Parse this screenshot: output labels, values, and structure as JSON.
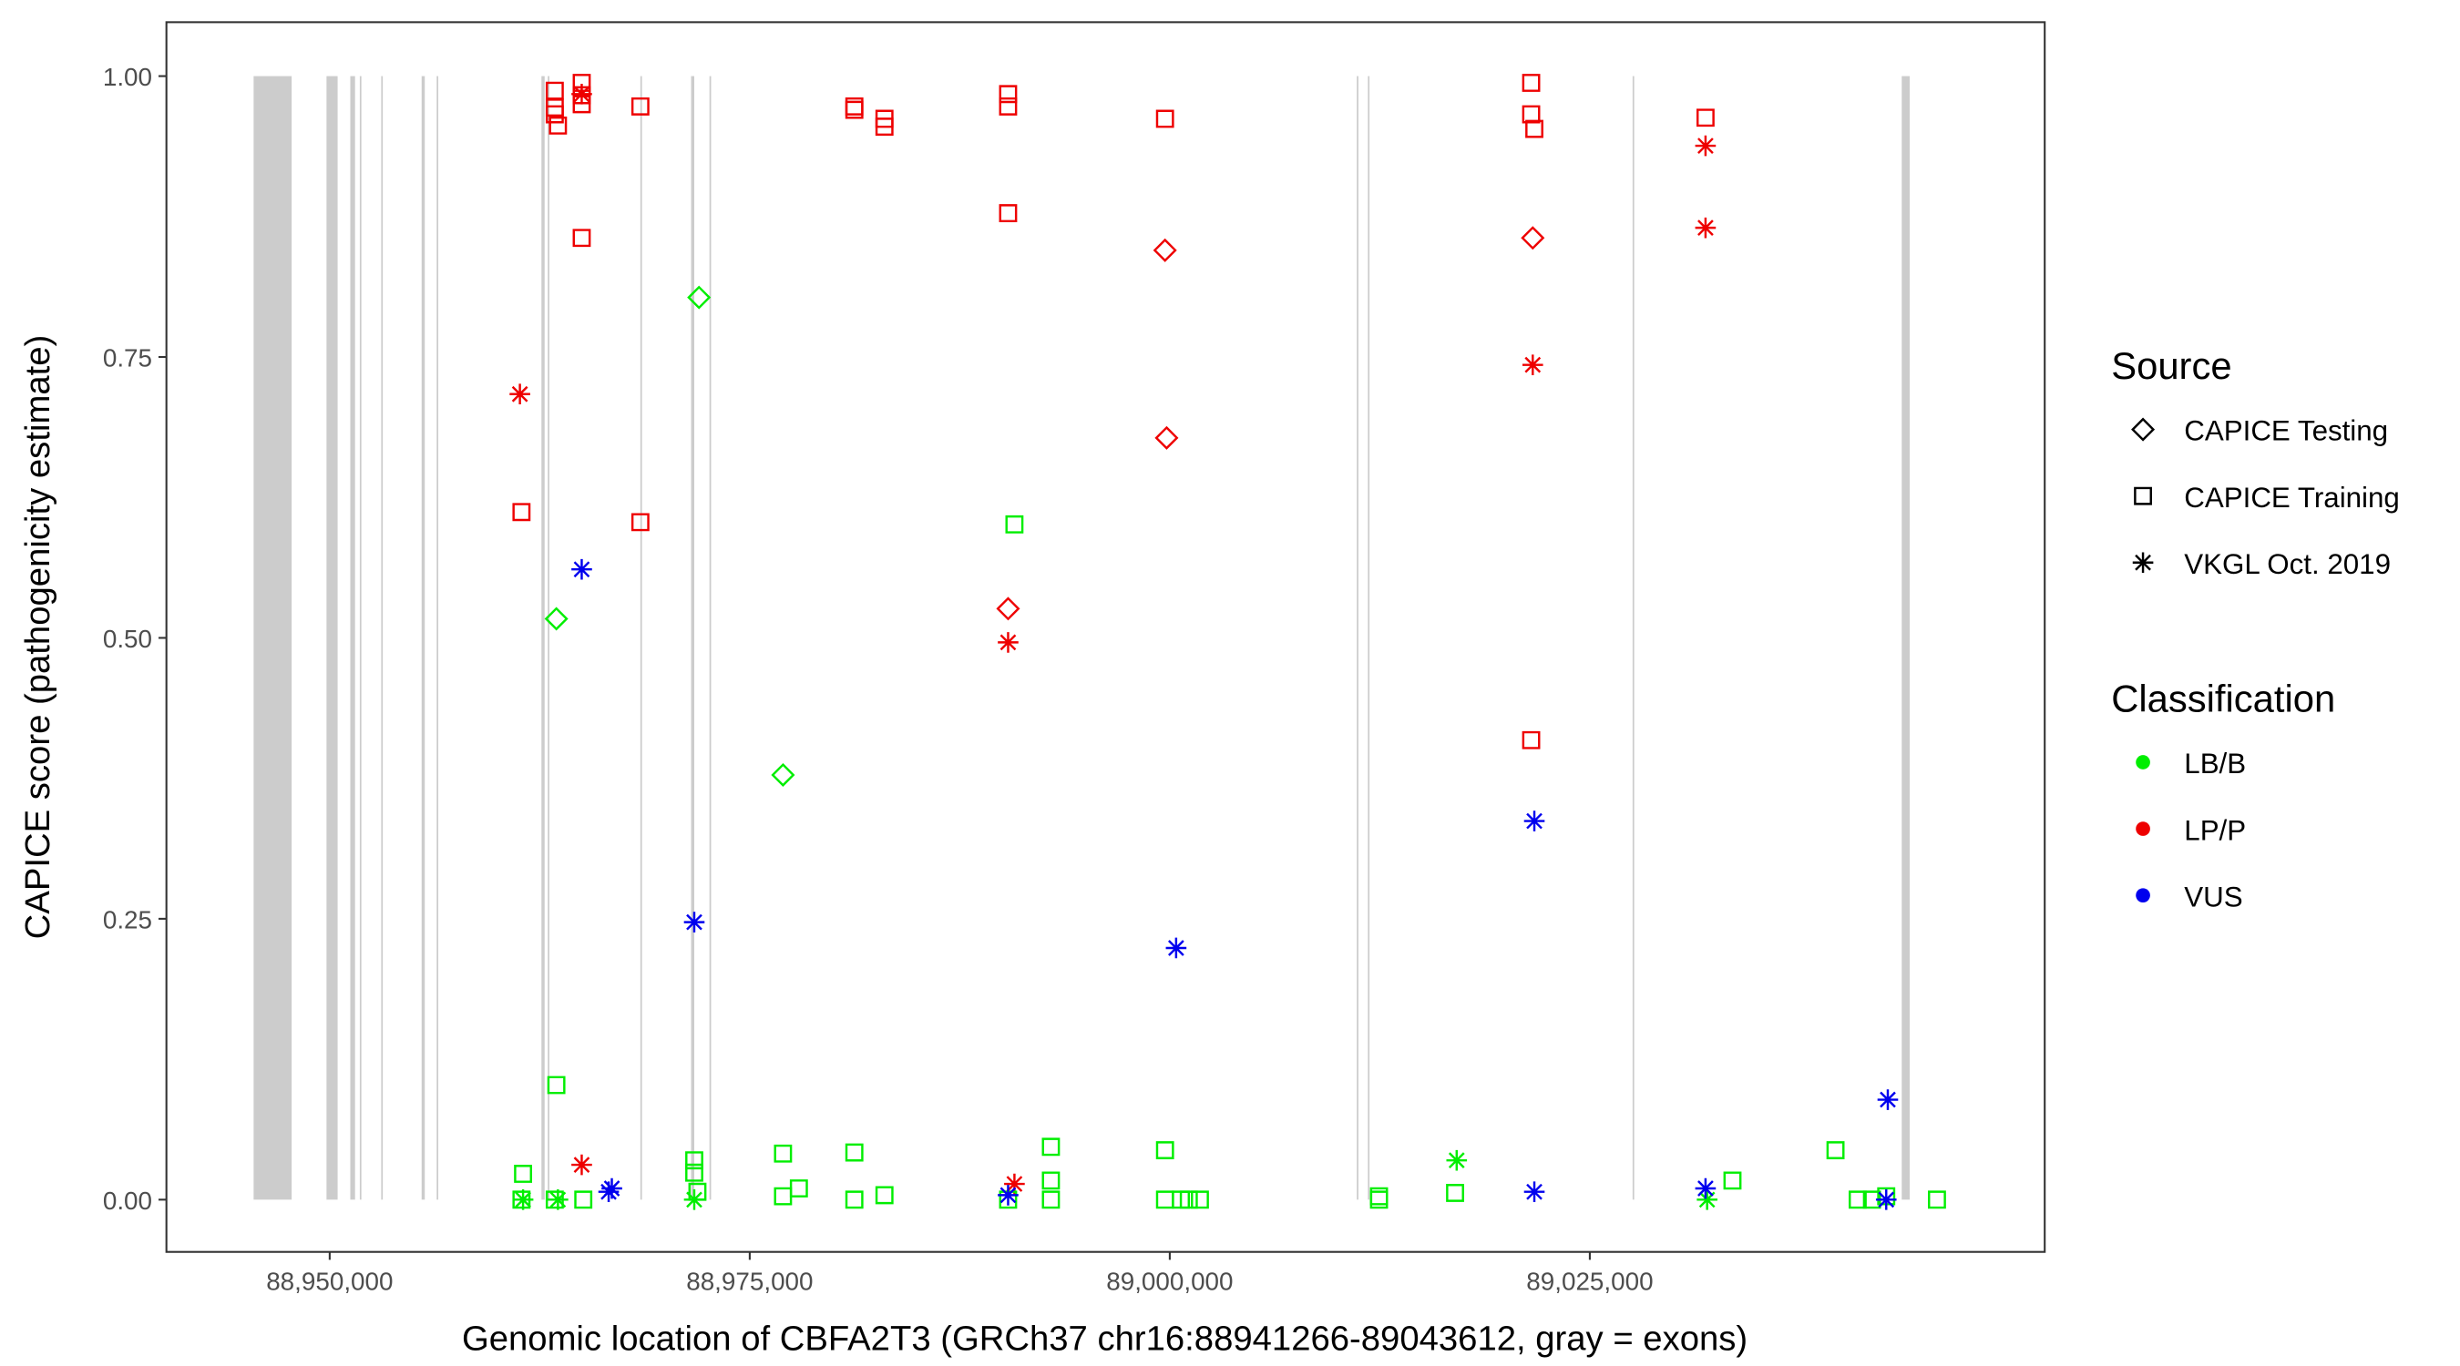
{
  "chart_data": {
    "type": "scatter",
    "xlabel": "Genomic location of CBFA2T3 (GRCh37 chr16:88941266-89043612, gray = exons)",
    "ylabel": "CAPICE score (pathogenicity estimate)",
    "xlim": [
      88940283,
      89052075
    ],
    "ylim": [
      -0.0465,
      1.048
    ],
    "xticks": [
      {
        "value": 88950000,
        "label": "88,950,000"
      },
      {
        "value": 88975000,
        "label": "88,975,000"
      },
      {
        "value": 89000000,
        "label": "89,000,000"
      },
      {
        "value": 89025000,
        "label": "89,025,000"
      }
    ],
    "yticks": [
      {
        "value": 0,
        "label": "0.00"
      },
      {
        "value": 0.25,
        "label": "0.25"
      },
      {
        "value": 0.5,
        "label": "0.50"
      },
      {
        "value": 0.75,
        "label": "0.75"
      },
      {
        "value": 1,
        "label": "1.00"
      }
    ],
    "exons": {
      "color": "#cccccc",
      "starts": [
        88945472,
        88949811,
        88951226,
        88951792,
        88953066,
        88955472,
        88956368,
        88962604,
        88962981,
        88968491,
        88971509,
        88972604,
        89011132,
        89011792,
        89027547,
        89043566
      ],
      "ends": [
        88947736,
        88950472,
        88951509,
        88951887,
        88953160,
        88955660,
        88956462,
        88962792,
        88963075,
        88968585,
        88971698,
        88972698,
        89011226,
        89011887,
        89027641,
        89044038
      ]
    },
    "source_legend": {
      "title": "Source",
      "items": [
        {
          "name": "CAPICE Testing",
          "shape": "diamond"
        },
        {
          "name": "CAPICE Training",
          "shape": "square"
        },
        {
          "name": "VKGL Oct. 2019",
          "shape": "star"
        }
      ]
    },
    "classification_legend": {
      "title": "Classification",
      "items": [
        {
          "name": "LB/B",
          "color": "#00ee00"
        },
        {
          "name": "LP/P",
          "color": "#ee0000"
        },
        {
          "name": "VUS",
          "color": "#0000ee"
        }
      ]
    },
    "series": [
      {
        "source": "CAPICE Training",
        "classification": "LP/P",
        "x": [
          88963396,
          88963396,
          88963396,
          88963585,
          88965000,
          88965000,
          88965000,
          88968491,
          88981227,
          88981227,
          88983019,
          88983019,
          88990378,
          88990378,
          88999717,
          89021510,
          89021510,
          89021698,
          89031887,
          88961415,
          88968491,
          88965000,
          88990378,
          89021510
        ],
        "values": [
          0.987,
          0.972,
          0.966,
          0.956,
          0.994,
          0.983,
          0.975,
          0.973,
          0.973,
          0.97,
          0.962,
          0.955,
          0.984,
          0.973,
          0.962,
          0.994,
          0.966,
          0.953,
          0.963,
          0.612,
          0.603,
          0.856,
          0.878,
          0.409
        ]
      },
      {
        "source": "VKGL Oct. 2019",
        "classification": "LP/P",
        "x": [
          88961321,
          88965000,
          89021604,
          89031887,
          89031887,
          88990378,
          88965000,
          88990755
        ],
        "values": [
          0.717,
          0.984,
          0.743,
          0.938,
          0.865,
          0.496,
          0.031,
          0.014
        ]
      },
      {
        "source": "CAPICE Testing",
        "classification": "LP/P",
        "x": [
          88999717,
          89021604,
          88999812,
          88990378
        ],
        "values": [
          0.845,
          0.856,
          0.678,
          0.526
        ]
      },
      {
        "source": "CAPICE Testing",
        "classification": "LB/B",
        "x": [
          88971981,
          88963491,
          88976981
        ],
        "values": [
          0.803,
          0.517,
          0.378
        ]
      },
      {
        "source": "CAPICE Training",
        "classification": "LB/B",
        "x": [
          88990755,
          88963491,
          88961509,
          88961415,
          88963396,
          88965094,
          88971698,
          88971698,
          88971887,
          88976981,
          88976981,
          88977925,
          88981227,
          88981227,
          88983019,
          88990378,
          88992925,
          88992925,
          88992925,
          88999717,
          88999717,
          89000661,
          89001132,
          89001793,
          89012453,
          89012453,
          89016981,
          89033491,
          89039623,
          89040944,
          89041793,
          89042642,
          89045661
        ],
        "values": [
          0.601,
          0.102,
          0.023,
          0,
          0,
          0,
          0.035,
          0.024,
          0.007,
          0.041,
          0.003,
          0.01,
          0.042,
          0,
          0.004,
          0,
          0.047,
          0.017,
          0,
          0.044,
          0,
          0,
          0,
          0,
          0.003,
          0,
          0.006,
          0.017,
          0.044,
          0,
          0,
          0.003,
          0
        ]
      },
      {
        "source": "VKGL Oct. 2019",
        "classification": "LB/B",
        "x": [
          88961509,
          88963585,
          88971698,
          89017076,
          89031981
        ],
        "values": [
          0,
          0,
          0,
          0.035,
          0
        ]
      },
      {
        "source": "VKGL Oct. 2019",
        "classification": "VUS",
        "x": [
          88965000,
          88971698,
          89000378,
          89021698,
          89042736,
          88966793,
          88966604,
          88990378,
          89021698,
          89031887,
          89042642
        ],
        "values": [
          0.561,
          0.247,
          0.224,
          0.337,
          0.089,
          0.01,
          0.007,
          0.004,
          0.007,
          0.01,
          0
        ]
      }
    ]
  }
}
